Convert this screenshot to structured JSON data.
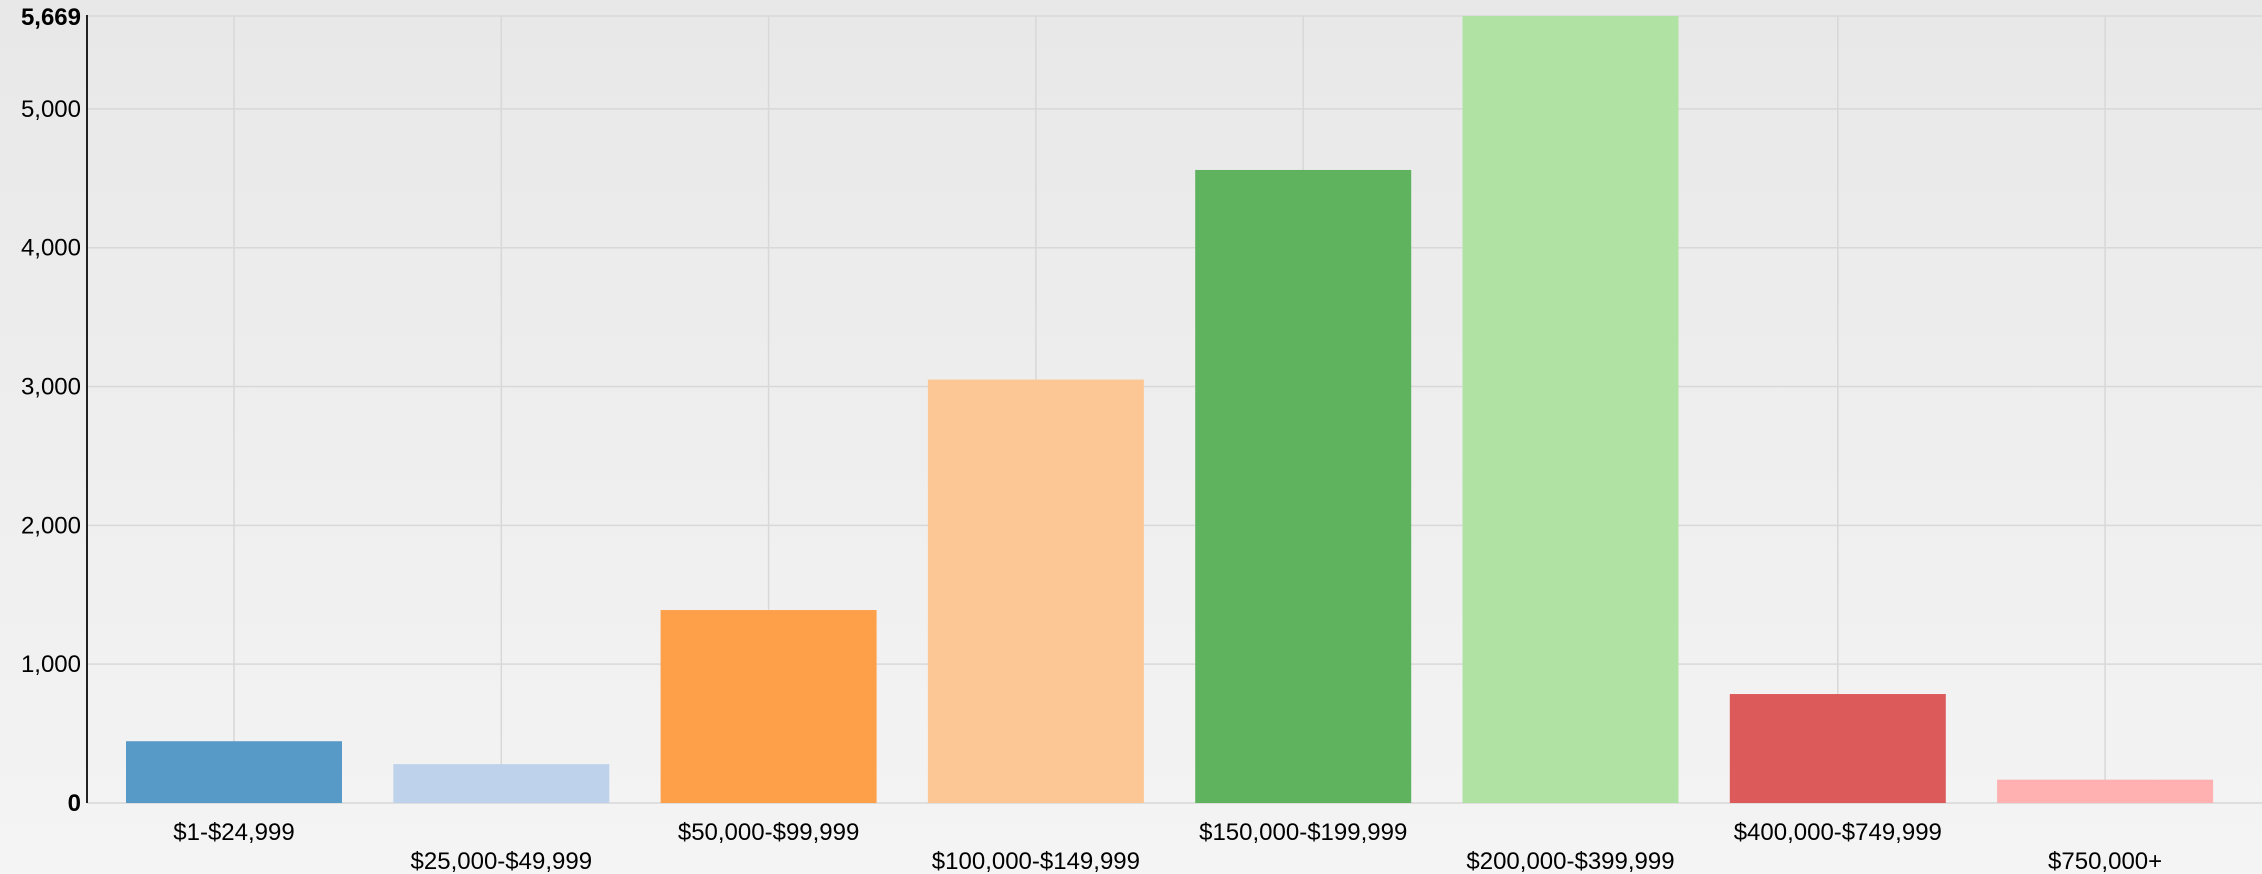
{
  "chart_data": {
    "type": "bar",
    "categories": [
      "$1-$24,999",
      "$25,000-$49,999",
      "$50,000-$99,999",
      "$100,000-$149,999",
      "$150,000-$199,999",
      "$200,000-$399,999",
      "$400,000-$749,999",
      "$750,000+"
    ],
    "values": [
      445,
      280,
      1390,
      3050,
      4560,
      5669,
      785,
      168
    ],
    "colors": [
      "#5799c7",
      "#bfd2ec",
      "#fe9f4a",
      "#fdc795",
      "#5fb35f",
      "#b0e2a3",
      "#dd5a5b",
      "#feb1b0"
    ],
    "yticks": [
      {
        "value": 0,
        "label": "0",
        "bold": true
      },
      {
        "value": 1000,
        "label": "1,000",
        "bold": false
      },
      {
        "value": 2000,
        "label": "2,000",
        "bold": false
      },
      {
        "value": 3000,
        "label": "3,000",
        "bold": false
      },
      {
        "value": 4000,
        "label": "4,000",
        "bold": false
      },
      {
        "value": 5000,
        "label": "5,000",
        "bold": false
      },
      {
        "value": 5669,
        "label": "5,669",
        "bold": true
      }
    ],
    "ylim": [
      0,
      5669
    ],
    "title": "",
    "xlabel": "",
    "ylabel": "",
    "grid": true,
    "legend": "none"
  }
}
